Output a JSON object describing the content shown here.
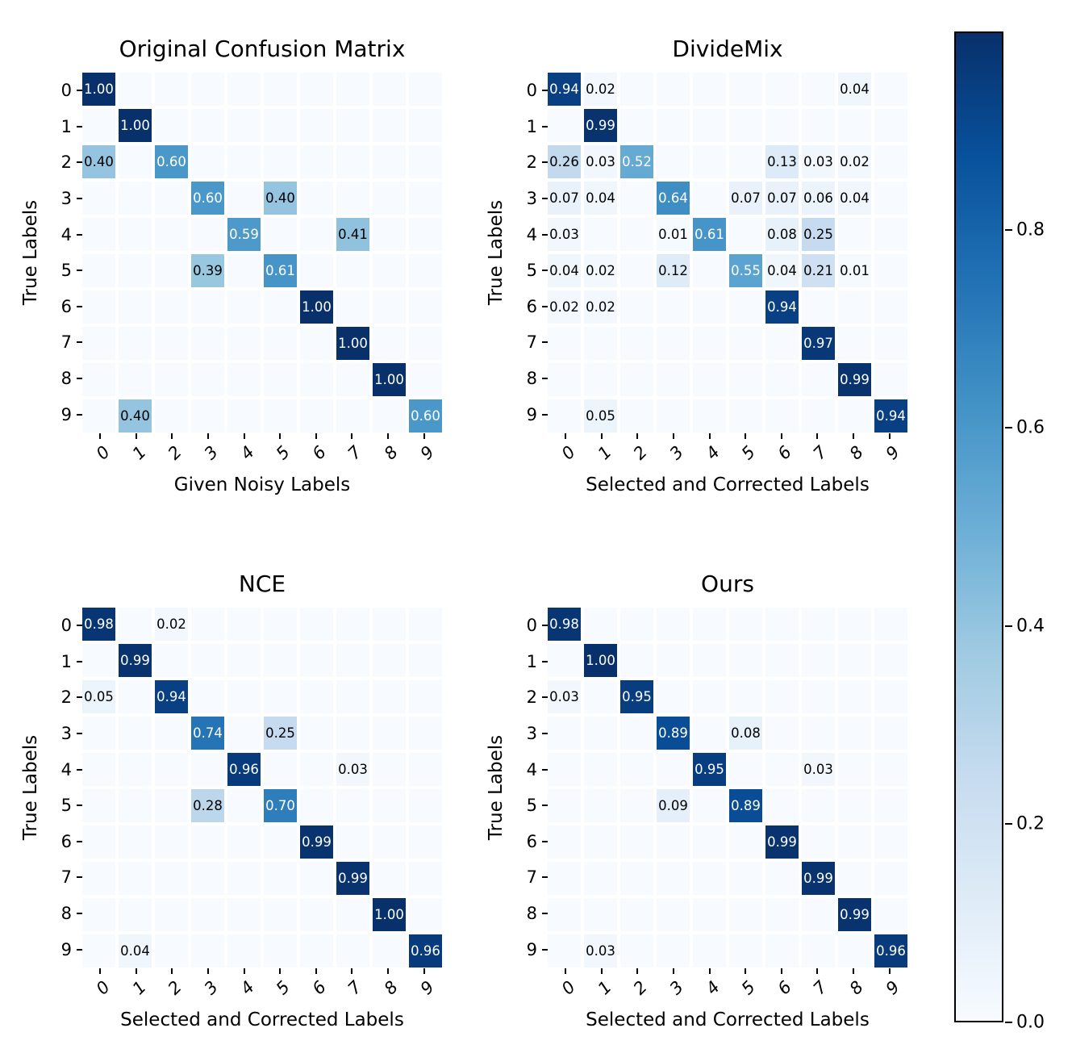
{
  "figure": {
    "background": "#ffffff",
    "text_color": "#000000"
  },
  "annotation_text_colors": {
    "light": "#ffffff",
    "dark": "#000000"
  },
  "chart_data": [
    {
      "type": "heatmap",
      "title": "Original Confusion Matrix",
      "xlabel": "Given Noisy Labels",
      "ylabel": "True Labels",
      "x_ticklabels": [
        "0",
        "1",
        "2",
        "3",
        "4",
        "5",
        "6",
        "7",
        "8",
        "9"
      ],
      "y_ticklabels": [
        "0",
        "1",
        "2",
        "3",
        "4",
        "5",
        "6",
        "7",
        "8",
        "9"
      ],
      "vmin": 0.0,
      "vmax": 1.0,
      "matrix": [
        [
          1.0,
          0,
          0,
          0,
          0,
          0,
          0,
          0,
          0,
          0
        ],
        [
          0,
          1.0,
          0,
          0,
          0,
          0,
          0,
          0,
          0,
          0
        ],
        [
          0.4,
          0,
          0.6,
          0,
          0,
          0,
          0,
          0,
          0,
          0
        ],
        [
          0,
          0,
          0,
          0.6,
          0,
          0.4,
          0,
          0,
          0,
          0
        ],
        [
          0,
          0,
          0,
          0,
          0.59,
          0,
          0,
          0.41,
          0,
          0
        ],
        [
          0,
          0,
          0,
          0.39,
          0,
          0.61,
          0,
          0,
          0,
          0
        ],
        [
          0,
          0,
          0,
          0,
          0,
          0,
          1.0,
          0,
          0,
          0
        ],
        [
          0,
          0,
          0,
          0,
          0,
          0,
          0,
          1.0,
          0,
          0
        ],
        [
          0,
          0,
          0,
          0,
          0,
          0,
          0,
          0,
          1.0,
          0
        ],
        [
          0,
          0.4,
          0,
          0,
          0,
          0,
          0,
          0,
          0,
          0.6
        ]
      ]
    },
    {
      "type": "heatmap",
      "title": "DivideMix",
      "xlabel": "Selected and Corrected Labels",
      "ylabel": "True Labels",
      "x_ticklabels": [
        "0",
        "1",
        "2",
        "3",
        "4",
        "5",
        "6",
        "7",
        "8",
        "9"
      ],
      "y_ticklabels": [
        "0",
        "1",
        "2",
        "3",
        "4",
        "5",
        "6",
        "7",
        "8",
        "9"
      ],
      "vmin": 0.0,
      "vmax": 1.0,
      "matrix": [
        [
          0.94,
          0.02,
          0,
          0,
          0,
          0,
          0,
          0,
          0.04,
          0
        ],
        [
          0,
          0.99,
          0,
          0,
          0,
          0,
          0,
          0,
          0,
          0
        ],
        [
          0.26,
          0.03,
          0.52,
          0,
          0,
          0,
          0.13,
          0.03,
          0.02,
          0
        ],
        [
          0.07,
          0.04,
          0,
          0.64,
          0,
          0.07,
          0.07,
          0.06,
          0.04,
          0
        ],
        [
          0.03,
          0,
          0,
          0.01,
          0.61,
          0,
          0.08,
          0.25,
          0,
          0
        ],
        [
          0.04,
          0.02,
          0,
          0.12,
          0,
          0.55,
          0.04,
          0.21,
          0.01,
          0
        ],
        [
          0.02,
          0.02,
          0,
          0,
          0,
          0,
          0.94,
          0,
          0,
          0
        ],
        [
          0,
          0,
          0,
          0,
          0,
          0,
          0,
          0.97,
          0,
          0
        ],
        [
          0,
          0,
          0,
          0,
          0,
          0,
          0,
          0,
          0.99,
          0
        ],
        [
          0,
          0.05,
          0,
          0,
          0,
          0,
          0,
          0,
          0,
          0.94
        ]
      ]
    },
    {
      "type": "heatmap",
      "title": "NCE",
      "xlabel": "Selected and Corrected Labels",
      "ylabel": "True Labels",
      "x_ticklabels": [
        "0",
        "1",
        "2",
        "3",
        "4",
        "5",
        "6",
        "7",
        "8",
        "9"
      ],
      "y_ticklabels": [
        "0",
        "1",
        "2",
        "3",
        "4",
        "5",
        "6",
        "7",
        "8",
        "9"
      ],
      "vmin": 0.0,
      "vmax": 1.0,
      "matrix": [
        [
          0.98,
          0,
          0.02,
          0,
          0,
          0,
          0,
          0,
          0,
          0
        ],
        [
          0,
          0.99,
          0,
          0,
          0,
          0,
          0,
          0,
          0,
          0
        ],
        [
          0.05,
          0,
          0.94,
          0,
          0,
          0,
          0,
          0,
          0,
          0
        ],
        [
          0,
          0,
          0,
          0.74,
          0,
          0.25,
          0,
          0,
          0,
          0
        ],
        [
          0,
          0,
          0,
          0,
          0.96,
          0,
          0,
          0.03,
          0,
          0
        ],
        [
          0,
          0,
          0,
          0.28,
          0,
          0.7,
          0,
          0,
          0,
          0
        ],
        [
          0,
          0,
          0,
          0,
          0,
          0,
          0.99,
          0,
          0,
          0
        ],
        [
          0,
          0,
          0,
          0,
          0,
          0,
          0,
          0.99,
          0,
          0
        ],
        [
          0,
          0,
          0,
          0,
          0,
          0,
          0,
          0,
          1.0,
          0
        ],
        [
          0,
          0.04,
          0,
          0,
          0,
          0,
          0,
          0,
          0,
          0.96
        ]
      ]
    },
    {
      "type": "heatmap",
      "title": "Ours",
      "xlabel": "Selected and Corrected Labels",
      "ylabel": "True Labels",
      "x_ticklabels": [
        "0",
        "1",
        "2",
        "3",
        "4",
        "5",
        "6",
        "7",
        "8",
        "9"
      ],
      "y_ticklabels": [
        "0",
        "1",
        "2",
        "3",
        "4",
        "5",
        "6",
        "7",
        "8",
        "9"
      ],
      "vmin": 0.0,
      "vmax": 1.0,
      "matrix": [
        [
          0.98,
          0,
          0,
          0,
          0,
          0,
          0,
          0,
          0,
          0
        ],
        [
          0,
          1.0,
          0,
          0,
          0,
          0,
          0,
          0,
          0,
          0
        ],
        [
          0.03,
          0,
          0.95,
          0,
          0,
          0,
          0,
          0,
          0,
          0
        ],
        [
          0,
          0,
          0,
          0.89,
          0,
          0.08,
          0,
          0,
          0,
          0
        ],
        [
          0,
          0,
          0,
          0,
          0.95,
          0,
          0,
          0.03,
          0,
          0
        ],
        [
          0,
          0,
          0,
          0.09,
          0,
          0.89,
          0,
          0,
          0,
          0
        ],
        [
          0,
          0,
          0,
          0,
          0,
          0,
          0.99,
          0,
          0,
          0
        ],
        [
          0,
          0,
          0,
          0,
          0,
          0,
          0,
          0.99,
          0,
          0
        ],
        [
          0,
          0,
          0,
          0,
          0,
          0,
          0,
          0,
          0.99,
          0
        ],
        [
          0,
          0.03,
          0,
          0,
          0,
          0,
          0,
          0,
          0,
          0.96
        ]
      ]
    }
  ],
  "colorbar": {
    "colormap_name": "Blues",
    "gradient_stops": [
      "#f7fbff",
      "#deebf7",
      "#c6dbef",
      "#9ecae1",
      "#6baed6",
      "#4292c6",
      "#2171b5",
      "#08519c",
      "#08306b"
    ],
    "ticks": [
      {
        "label": "0.8",
        "pos_pct_from_top": 20
      },
      {
        "label": "0.6",
        "pos_pct_from_top": 40
      },
      {
        "label": "0.4",
        "pos_pct_from_top": 60
      },
      {
        "label": "0.2",
        "pos_pct_from_top": 80
      },
      {
        "label": "0.0",
        "pos_pct_from_top": 100
      }
    ]
  }
}
